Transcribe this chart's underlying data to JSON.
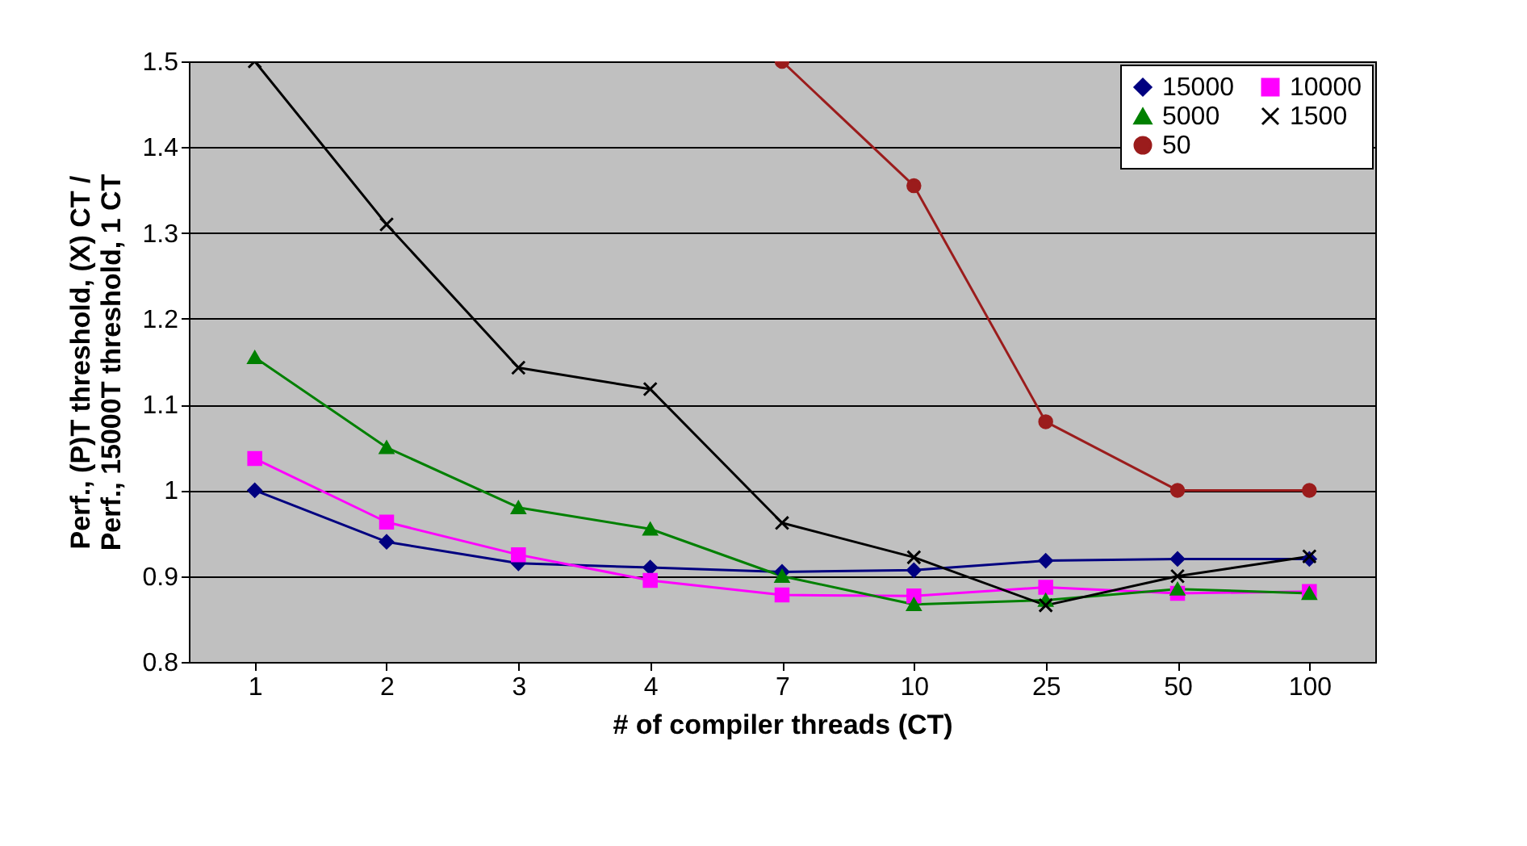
{
  "chart_data": {
    "type": "line",
    "xlabel": "# of compiler threads (CT)",
    "ylabel": "Perf., (P)T threshold, (X) CT /\nPerf., 15000T threshold, 1 CT",
    "categories": [
      "1",
      "2",
      "3",
      "4",
      "7",
      "10",
      "25",
      "50",
      "100"
    ],
    "series": [
      {
        "name": "15000",
        "color": "#000080",
        "marker": "diamond",
        "values": [
          1.0,
          0.94,
          0.915,
          0.91,
          0.905,
          0.907,
          0.918,
          0.92,
          0.92
        ]
      },
      {
        "name": "10000",
        "color": "#ff00ff",
        "marker": "square",
        "values": [
          1.037,
          0.963,
          0.925,
          0.895,
          0.878,
          0.877,
          0.887,
          0.88,
          0.882
        ]
      },
      {
        "name": "5000",
        "color": "#008000",
        "marker": "triangle",
        "values": [
          1.155,
          1.05,
          0.98,
          0.955,
          0.9,
          0.867,
          0.872,
          0.885,
          0.88
        ]
      },
      {
        "name": "1500",
        "color": "#000000",
        "marker": "cross",
        "values": [
          1.5,
          1.31,
          1.143,
          1.118,
          0.962,
          0.922,
          0.866,
          0.9,
          0.923
        ]
      },
      {
        "name": "50",
        "color": "#9b1c1c",
        "marker": "circle",
        "values": [
          null,
          null,
          null,
          null,
          1.5,
          1.355,
          1.08,
          1.0,
          1.0
        ]
      }
    ],
    "ylim": [
      0.8,
      1.5
    ],
    "yticks": [
      0.8,
      0.9,
      1,
      1.1,
      1.2,
      1.3,
      1.4,
      1.5
    ],
    "grid": "y",
    "legend": "top right",
    "line_style": "solid"
  }
}
